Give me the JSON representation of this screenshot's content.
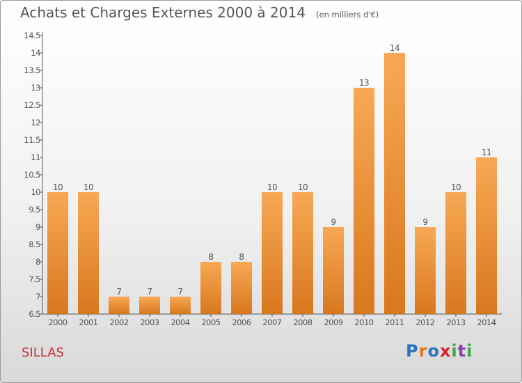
{
  "title": "Achats et Charges Externes 2000 à 2014",
  "unit": "(en milliers d'€)",
  "commune": "SILLAS",
  "brand": {
    "name": "Proxiti",
    "letter_colors": [
      "#2a74c4",
      "#e8731a",
      "#2a74c4",
      "#d9232d",
      "#3aa64a",
      "#8a3fb0",
      "#3aa64a"
    ]
  },
  "colors": {
    "bar_light": "#f8a854",
    "bar_dark": "#d8781e",
    "axis": "#555555",
    "text": "#555555"
  },
  "chart_data": {
    "type": "bar",
    "title": "Achats et Charges Externes 2000 à 2014",
    "xlabel": "",
    "ylabel": "",
    "categories": [
      "2000",
      "2001",
      "2002",
      "2003",
      "2004",
      "2005",
      "2006",
      "2007",
      "2008",
      "2009",
      "2010",
      "2011",
      "2012",
      "2013",
      "2014"
    ],
    "values": [
      10,
      10,
      7,
      7,
      7,
      8,
      8,
      10,
      10,
      9,
      13,
      14,
      9,
      10,
      11
    ],
    "value_labels": [
      "10",
      "10",
      "7",
      "7",
      "7",
      "8",
      "8",
      "10",
      "10",
      "9",
      "13",
      "14",
      "9",
      "10",
      "11"
    ],
    "ylim": [
      6.5,
      14.5
    ],
    "yticks": [
      "6.5",
      "7",
      "7.5",
      "8",
      "8.5",
      "9",
      "9.5",
      "10",
      "10.5",
      "11",
      "11.5",
      "12",
      "12.5",
      "13",
      "13.5",
      "14",
      "14.5"
    ],
    "grid": false,
    "legend": "none"
  }
}
